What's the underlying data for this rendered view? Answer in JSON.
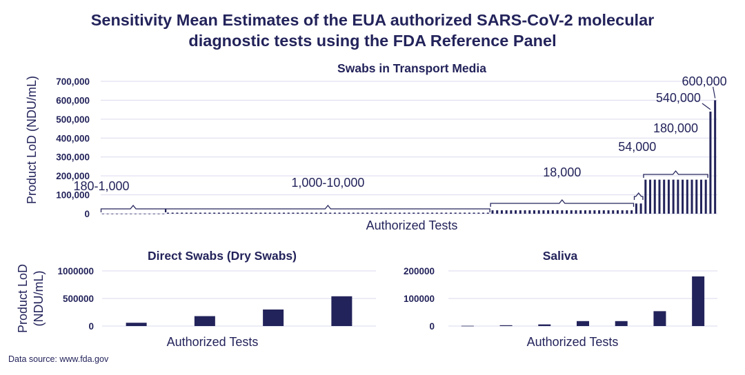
{
  "title": {
    "line1": "Sensitivity Mean Estimates of the EUA authorized SARS-CoV-2 molecular",
    "line2": "diagnostic tests using the FDA Reference Panel"
  },
  "source": "Data source: www.fda.gov",
  "colors": {
    "bar": "#23235b",
    "text": "#23235b",
    "grid": "#d9d9ee"
  },
  "chart_data": [
    {
      "type": "bar",
      "title": "Swabs in Transport Media",
      "xlabel": "Authorized Tests",
      "ylabel": "Product LoD (NDU/mL)",
      "ylim": [
        0,
        700000
      ],
      "yticks": [
        0,
        100000,
        200000,
        300000,
        400000,
        500000,
        600000,
        700000
      ],
      "ytick_labels": [
        "0",
        "100,000",
        "200,000",
        "300,000",
        "400,000",
        "500,000",
        "600,000",
        "700,000"
      ],
      "groups": [
        {
          "label": "180-1,000",
          "count": 14,
          "value": 600
        },
        {
          "label": "1,000-10,000",
          "count": 70,
          "value": 5400
        },
        {
          "label": "18,000",
          "count": 31,
          "value": 18000
        },
        {
          "label": "54,000",
          "count": 2,
          "value": 54000
        },
        {
          "label": "180,000",
          "count": 14,
          "value": 180000
        },
        {
          "label": "540,000",
          "count": 1,
          "value": 540000
        },
        {
          "label": "600,000",
          "count": 1,
          "value": 600000
        }
      ]
    },
    {
      "type": "bar",
      "title": "Direct Swabs (Dry Swabs)",
      "xlabel": "Authorized Tests",
      "ylabel_line1": "Product LoD",
      "ylabel_line2": "(NDU/mL)",
      "ylim": [
        0,
        1000000
      ],
      "yticks": [
        0,
        500000,
        1000000
      ],
      "ytick_labels": [
        "0",
        "500000",
        "1000000"
      ],
      "values": [
        60000,
        180000,
        300000,
        540000
      ]
    },
    {
      "type": "bar",
      "title": "Saliva",
      "xlabel": "Authorized Tests",
      "ylim": [
        0,
        200000
      ],
      "yticks": [
        0,
        100000,
        200000
      ],
      "ytick_labels": [
        "0",
        "100000",
        "200000"
      ],
      "values": [
        1000,
        3000,
        6000,
        18000,
        18000,
        54000,
        180000
      ]
    }
  ]
}
